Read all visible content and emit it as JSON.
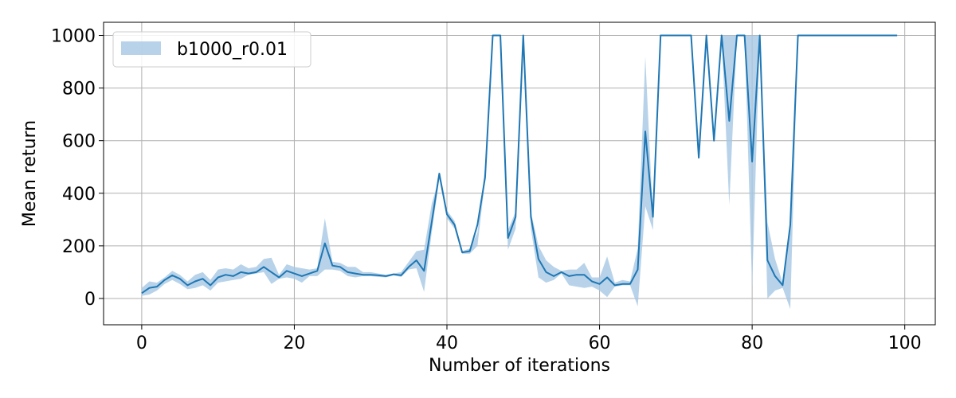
{
  "chart_data": {
    "type": "line",
    "title": "",
    "xlabel": "Number of iterations",
    "ylabel": "Mean return",
    "xlim": [
      -5,
      104
    ],
    "ylim": [
      -100,
      1050
    ],
    "xticks": [
      0,
      20,
      40,
      60,
      80,
      100
    ],
    "yticks": [
      0,
      200,
      400,
      600,
      800,
      1000
    ],
    "grid": true,
    "legend_placement": "top-left",
    "series": [
      {
        "name": "b1000_r0.01",
        "color": "#1f77b4",
        "band_color": "#a6c8e3",
        "x": [
          0,
          1,
          2,
          3,
          4,
          5,
          6,
          7,
          8,
          9,
          10,
          11,
          12,
          13,
          14,
          15,
          16,
          17,
          18,
          19,
          20,
          21,
          22,
          23,
          24,
          25,
          26,
          27,
          28,
          29,
          30,
          31,
          32,
          33,
          34,
          35,
          36,
          37,
          38,
          39,
          40,
          41,
          42,
          43,
          44,
          45,
          46,
          47,
          48,
          49,
          50,
          51,
          52,
          53,
          54,
          55,
          56,
          57,
          58,
          59,
          60,
          61,
          62,
          63,
          64,
          65,
          66,
          67,
          68,
          69,
          70,
          71,
          72,
          73,
          74,
          75,
          76,
          77,
          78,
          79,
          80,
          81,
          82,
          83,
          84,
          85,
          86,
          87,
          88,
          89,
          90,
          91,
          92,
          93,
          94,
          95,
          96,
          97,
          98,
          99
        ],
        "mean": [
          20,
          40,
          45,
          70,
          88,
          75,
          50,
          65,
          75,
          50,
          80,
          90,
          85,
          100,
          95,
          100,
          120,
          100,
          80,
          105,
          95,
          85,
          95,
          105,
          210,
          125,
          120,
          100,
          95,
          90,
          90,
          88,
          85,
          92,
          88,
          120,
          145,
          105,
          290,
          475,
          320,
          280,
          175,
          180,
          280,
          460,
          1000,
          1000,
          230,
          310,
          1000,
          310,
          150,
          100,
          85,
          100,
          85,
          90,
          90,
          65,
          55,
          80,
          50,
          55,
          55,
          110,
          635,
          310,
          1000,
          1000,
          1000,
          1000,
          1000,
          535,
          1000,
          600,
          1000,
          675,
          1000,
          1000,
          520,
          1000,
          145,
          85,
          50,
          280,
          1000,
          1000,
          1000,
          1000,
          1000,
          1000,
          1000,
          1000,
          1000,
          1000,
          1000,
          1000,
          1000,
          1000
        ],
        "upper": [
          40,
          65,
          60,
          80,
          105,
          90,
          65,
          90,
          100,
          70,
          110,
          115,
          110,
          130,
          115,
          120,
          150,
          155,
          90,
          130,
          120,
          115,
          110,
          115,
          305,
          140,
          135,
          120,
          120,
          100,
          100,
          95,
          90,
          95,
          100,
          140,
          180,
          185,
          360,
          460,
          335,
          295,
          180,
          190,
          250,
          500,
          1000,
          1000,
          260,
          330,
          1000,
          330,
          200,
          145,
          120,
          105,
          110,
          110,
          135,
          80,
          80,
          160,
          60,
          70,
          65,
          190,
          920,
          310,
          1000,
          1000,
          1000,
          1000,
          1000,
          535,
          1000,
          600,
          1000,
          1000,
          1000,
          1000,
          1000,
          1000,
          290,
          150,
          60,
          280,
          1000,
          1000,
          1000,
          1000,
          1000,
          1000,
          1000,
          1000,
          1000,
          1000,
          1000,
          1000,
          1000,
          1000
        ],
        "lower": [
          10,
          15,
          30,
          55,
          70,
          55,
          35,
          40,
          50,
          30,
          60,
          65,
          70,
          75,
          90,
          95,
          100,
          55,
          75,
          80,
          75,
          60,
          85,
          85,
          110,
          110,
          105,
          85,
          80,
          85,
          85,
          82,
          80,
          88,
          82,
          110,
          115,
          25,
          250,
          455,
          305,
          265,
          170,
          170,
          200,
          450,
          1000,
          1000,
          185,
          265,
          1000,
          265,
          80,
          60,
          70,
          95,
          50,
          45,
          40,
          45,
          30,
          5,
          45,
          50,
          50,
          -30,
          350,
          260,
          1000,
          1000,
          1000,
          1000,
          1000,
          535,
          1000,
          600,
          1000,
          355,
          1000,
          1000,
          40,
          1000,
          0,
          30,
          40,
          -40,
          1000,
          1000,
          1000,
          1000,
          1000,
          1000,
          1000,
          1000,
          1000,
          1000,
          1000,
          1000,
          1000,
          1000
        ]
      }
    ]
  }
}
